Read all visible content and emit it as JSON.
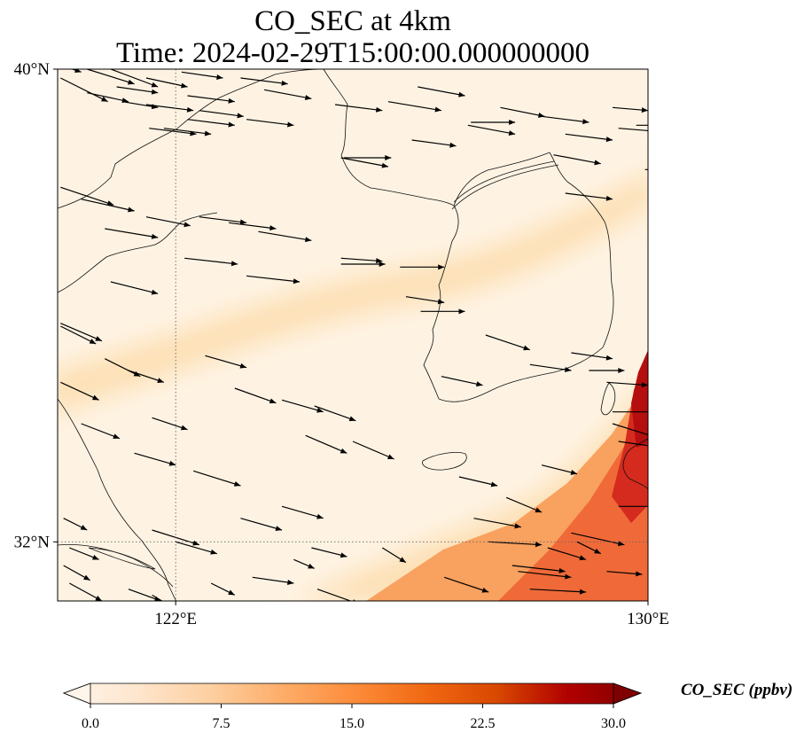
{
  "title": {
    "line1": "CO_SEC at 4km",
    "line2": "Time: 2024-02-29T15:00:00.000000000"
  },
  "map": {
    "lon_range": [
      120,
      130
    ],
    "lat_range": [
      31,
      40
    ],
    "lat_ticks": [
      {
        "value": 40,
        "label": "40°N"
      },
      {
        "value": 32,
        "label": "32°N"
      }
    ],
    "lon_ticks": [
      {
        "value": 122,
        "label": "122°E"
      },
      {
        "value": 130,
        "label": "130°E"
      }
    ],
    "gridlines": [
      {
        "orientation": "vertical",
        "value": 122
      },
      {
        "orientation": "horizontal",
        "value": 32
      }
    ],
    "background_color": "#fef3e3",
    "plume_color": "#fde0b5",
    "coastline_color": "#111111",
    "arrow_color": "#000000",
    "high_co_colors": [
      "#f9a15f",
      "#ef6a38",
      "#d52a1e",
      "#b50e0e"
    ],
    "wind_vectors": [
      [
        0.1,
        0.05,
        0.3,
        -0.1
      ],
      [
        0.05,
        -0.15,
        0.8,
        -0.4
      ],
      [
        0.5,
        0.0,
        0.8,
        -0.25
      ],
      [
        0.9,
        0.0,
        0.8,
        -0.3
      ],
      [
        0.5,
        -0.4,
        0.7,
        -0.15
      ],
      [
        1.0,
        -0.3,
        0.7,
        -0.1
      ],
      [
        1.5,
        -0.6,
        0.8,
        -0.1
      ],
      [
        1.5,
        -0.15,
        0.7,
        -0.15
      ],
      [
        2.2,
        -0.45,
        0.8,
        -0.1
      ],
      [
        2.2,
        -0.85,
        0.8,
        -0.1
      ],
      [
        1.1,
        -0.55,
        0.6,
        -0.1
      ],
      [
        2.1,
        -0.05,
        0.7,
        -0.1
      ],
      [
        1.8,
        -1.0,
        0.8,
        -0.1
      ],
      [
        2.4,
        -0.7,
        0.75,
        -0.1
      ],
      [
        3.1,
        -0.15,
        0.8,
        -0.1
      ],
      [
        3.5,
        0.1,
        0.7,
        0.0
      ],
      [
        3.2,
        -0.85,
        0.8,
        -0.1
      ],
      [
        3.5,
        -0.35,
        0.8,
        -0.15
      ],
      [
        4.7,
        -0.6,
        0.8,
        -0.1
      ],
      [
        4.8,
        -1.5,
        0.8,
        -0.15
      ],
      [
        4.85,
        -1.5,
        0.8,
        0.0
      ],
      [
        5.6,
        -0.55,
        0.9,
        -0.15
      ],
      [
        6.1,
        -0.3,
        0.8,
        -0.15
      ],
      [
        6.0,
        -1.2,
        0.75,
        -0.1
      ],
      [
        7.0,
        -0.9,
        0.75,
        0.0
      ],
      [
        6.95,
        -0.95,
        0.8,
        -0.15
      ],
      [
        7.5,
        -0.65,
        0.75,
        -0.15
      ],
      [
        8.2,
        -0.8,
        0.8,
        -0.1
      ],
      [
        8.4,
        -1.45,
        0.8,
        -0.15
      ],
      [
        8.6,
        -1.1,
        0.8,
        -0.1
      ],
      [
        8.6,
        -2.1,
        0.8,
        -0.1
      ],
      [
        9.4,
        -0.65,
        0.6,
        -0.05
      ],
      [
        9.5,
        -1.0,
        0.6,
        -0.05
      ],
      [
        9.8,
        -0.95,
        0.7,
        0.0
      ],
      [
        9.95,
        -1.7,
        0.7,
        0.0
      ],
      [
        0.05,
        -2.0,
        0.9,
        -0.3
      ],
      [
        0.4,
        -2.2,
        0.9,
        -0.2
      ],
      [
        0.8,
        -2.7,
        0.9,
        -0.15
      ],
      [
        1.5,
        -2.5,
        0.75,
        -0.15
      ],
      [
        1.55,
        -1.0,
        0.8,
        -0.1
      ],
      [
        0.9,
        -3.6,
        0.8,
        -0.2
      ],
      [
        2.4,
        -2.5,
        0.8,
        -0.1
      ],
      [
        2.9,
        -2.6,
        0.8,
        -0.1
      ],
      [
        2.15,
        -3.2,
        0.9,
        -0.1
      ],
      [
        3.4,
        -2.75,
        0.9,
        -0.15
      ],
      [
        3.2,
        -3.5,
        0.9,
        -0.1
      ],
      [
        4.8,
        -3.2,
        0.7,
        -0.05
      ],
      [
        4.8,
        -3.3,
        0.75,
        0.0
      ],
      [
        5.8,
        -3.35,
        0.75,
        0.0
      ],
      [
        5.9,
        -3.85,
        0.65,
        -0.1
      ],
      [
        6.15,
        -4.1,
        0.75,
        0.0
      ],
      [
        6.5,
        -5.2,
        0.7,
        -0.15
      ],
      [
        7.25,
        -4.5,
        0.75,
        -0.25
      ],
      [
        8.0,
        -5.0,
        0.7,
        -0.1
      ],
      [
        8.7,
        -4.8,
        0.7,
        -0.1
      ],
      [
        9.0,
        -5.1,
        0.6,
        0.0
      ],
      [
        9.4,
        -5.8,
        0.8,
        0.0
      ],
      [
        9.3,
        -5.3,
        0.7,
        -0.05
      ],
      [
        0.05,
        -4.3,
        0.7,
        -0.3
      ],
      [
        0.05,
        -4.35,
        0.6,
        -0.3
      ],
      [
        0.8,
        -4.9,
        0.6,
        -0.3
      ],
      [
        1.2,
        -5.1,
        0.6,
        -0.2
      ],
      [
        1.6,
        -5.9,
        0.6,
        -0.2
      ],
      [
        0.05,
        -5.3,
        0.65,
        -0.3
      ],
      [
        2.5,
        -4.85,
        0.7,
        -0.2
      ],
      [
        3.0,
        -5.4,
        0.7,
        -0.25
      ],
      [
        3.8,
        -5.6,
        0.7,
        -0.2
      ],
      [
        4.2,
        -6.2,
        0.7,
        -0.3
      ],
      [
        4.35,
        -5.7,
        0.7,
        -0.25
      ],
      [
        5.0,
        -6.3,
        0.7,
        -0.3
      ],
      [
        0.4,
        -6.0,
        0.65,
        -0.25
      ],
      [
        1.3,
        -6.5,
        0.7,
        -0.2
      ],
      [
        2.3,
        -6.8,
        0.8,
        -0.25
      ],
      [
        3.1,
        -7.6,
        0.7,
        -0.2
      ],
      [
        3.8,
        -7.4,
        0.7,
        -0.2
      ],
      [
        4.3,
        -8.1,
        0.6,
        -0.15
      ],
      [
        0.1,
        -7.6,
        0.4,
        -0.2
      ],
      [
        0.2,
        -8.1,
        0.5,
        -0.2
      ],
      [
        0.1,
        -8.4,
        0.45,
        -0.25
      ],
      [
        1.6,
        -7.8,
        0.8,
        -0.25
      ],
      [
        2.0,
        -8.0,
        0.7,
        -0.2
      ],
      [
        2.6,
        -8.7,
        0.4,
        -0.2
      ],
      [
        3.3,
        -8.6,
        0.7,
        -0.1
      ],
      [
        4.0,
        -8.3,
        0.35,
        -0.15
      ],
      [
        1.2,
        -8.8,
        0.55,
        -0.2
      ],
      [
        0.2,
        -8.7,
        0.55,
        -0.3
      ],
      [
        1.6,
        -8.9,
        0.5,
        -0.3
      ],
      [
        4.4,
        -8.8,
        0.7,
        -0.25
      ],
      [
        5.5,
        -8.1,
        0.4,
        -0.25
      ],
      [
        5.3,
        -9.0,
        0.65,
        -0.1
      ],
      [
        6.55,
        -8.6,
        0.75,
        -0.25
      ],
      [
        7.05,
        -7.6,
        0.8,
        -0.15
      ],
      [
        7.6,
        -7.25,
        0.6,
        -0.25
      ],
      [
        6.8,
        -6.9,
        0.65,
        -0.15
      ],
      [
        8.2,
        -6.7,
        0.6,
        -0.15
      ],
      [
        9.4,
        -6.0,
        0.8,
        -0.25
      ],
      [
        9.5,
        -6.3,
        0.7,
        -0.1
      ],
      [
        7.8,
        -8.5,
        0.9,
        -0.1
      ],
      [
        7.3,
        -8.0,
        0.9,
        -0.05
      ],
      [
        8.3,
        -8.1,
        0.65,
        -0.2
      ],
      [
        8.0,
        -8.8,
        0.95,
        -0.05
      ],
      [
        7.7,
        -8.4,
        0.9,
        -0.1
      ],
      [
        8.8,
        -8.0,
        0.4,
        -0.2
      ],
      [
        8.7,
        -7.85,
        0.9,
        -0.2
      ],
      [
        9.5,
        -7.4,
        0.9,
        0.0
      ],
      [
        9.3,
        -8.5,
        0.6,
        -0.05
      ],
      [
        8.3,
        -9.7,
        0.95,
        -0.2
      ]
    ]
  },
  "colorbar": {
    "label": "CO_SEC (ppbv)",
    "min": 0,
    "max": 30,
    "ticks": [
      "0.0",
      "7.5",
      "15.0",
      "22.5",
      "30.0"
    ],
    "colors": [
      "#fff5eb",
      "#fee6ce",
      "#fdd0a2",
      "#fdae6b",
      "#fd8d3c",
      "#f16913",
      "#d94801",
      "#b00000",
      "#7f0000"
    ]
  }
}
